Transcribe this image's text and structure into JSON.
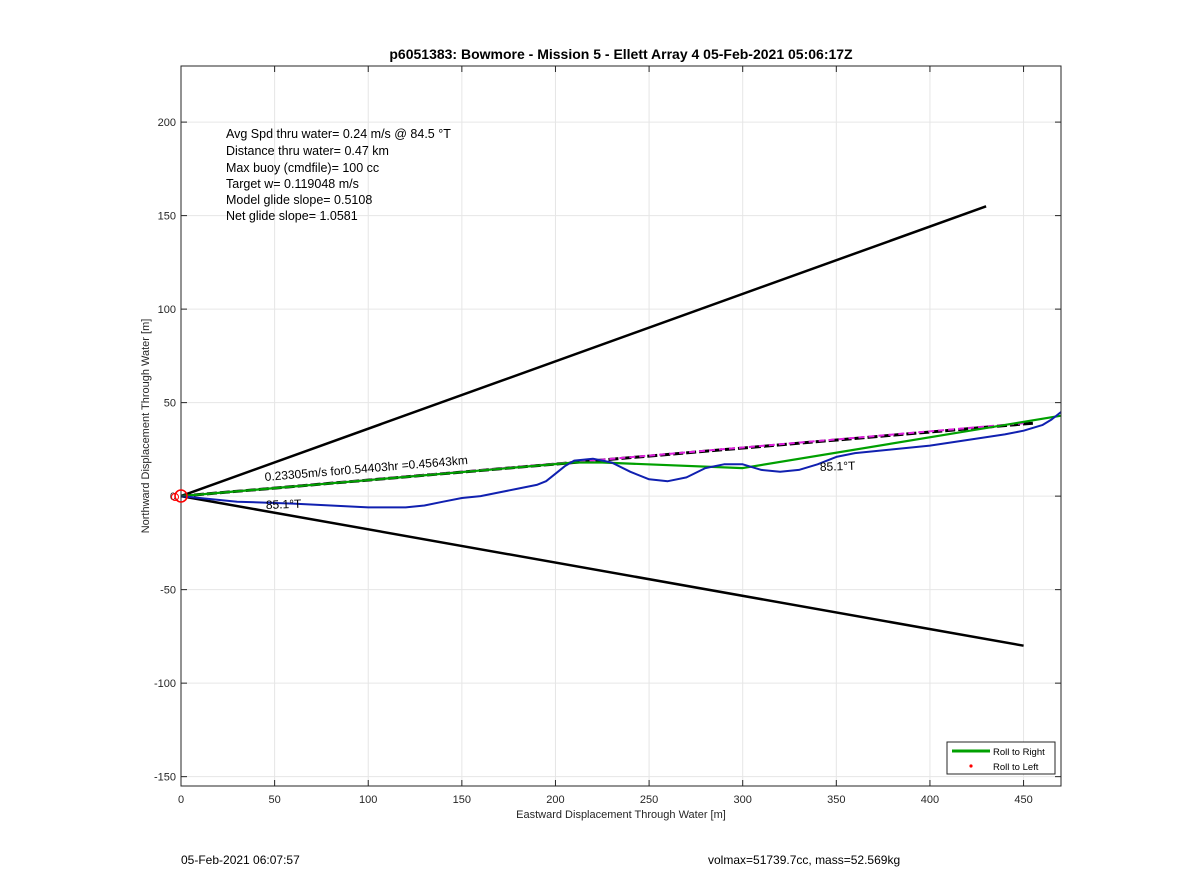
{
  "chart_data": {
    "type": "line",
    "title": "p6051383: Bowmore - Mission 5 - Ellett Array 4 05-Feb-2021 05:06:17Z",
    "xlabel": "Eastward Displacement Through Water [m]",
    "ylabel": "Northward Displacement Through Water [m]",
    "xlim": [
      0,
      470
    ],
    "ylim": [
      -155,
      230
    ],
    "xticks": [
      0,
      50,
      100,
      150,
      200,
      250,
      300,
      350,
      400,
      450
    ],
    "yticks": [
      -150,
      -100,
      -50,
      0,
      50,
      100,
      150,
      200
    ],
    "grid": true,
    "legend": {
      "placement": "bottom-right",
      "entries": [
        {
          "label": "Roll to Right",
          "color": "#00a000",
          "style": "line"
        },
        {
          "label": "Roll to Left",
          "color": "#ff0000",
          "style": "dot"
        }
      ]
    },
    "stats": [
      "Avg Spd thru water=  0.24 m/s @  84.5 °T",
      "Distance thru water=  0.47 km",
      "Max buoy (cmdfile)= 100 cc",
      "Target w= 0.119048 m/s",
      "Model glide slope= 0.5108",
      "Net glide slope= 1.0581"
    ],
    "annotations": {
      "speed_label": "0.23305m/s for0.54403hr =0.45643km",
      "heading_label_a": "85.1°T",
      "heading_label_b": "85.1°T"
    },
    "series": [
      {
        "id": "cone-upper",
        "color": "#000000",
        "x": [
          0,
          430
        ],
        "y": [
          0,
          155
        ]
      },
      {
        "id": "cone-lower",
        "color": "#000000",
        "x": [
          0,
          450
        ],
        "y": [
          0,
          -80
        ]
      },
      {
        "id": "track-net",
        "color": "#000000",
        "dashed": true,
        "x": [
          0,
          455
        ],
        "y": [
          0,
          39
        ]
      },
      {
        "id": "track-magenta",
        "color": "#e020e0",
        "dashed": true,
        "x": [
          0,
          450
        ],
        "y": [
          0,
          39
        ]
      },
      {
        "id": "roll-to-right",
        "name": "Roll to Right",
        "color": "#00a000",
        "x": [
          0,
          210,
          225,
          300,
          470
        ],
        "y": [
          0,
          18,
          18,
          15,
          43
        ]
      },
      {
        "id": "glider-track",
        "color": "#1020b0",
        "x": [
          0,
          30,
          60,
          80,
          100,
          120,
          130,
          140,
          150,
          160,
          170,
          180,
          190,
          195,
          200,
          205,
          210,
          220,
          230,
          240,
          250,
          260,
          270,
          280,
          290,
          300,
          310,
          320,
          330,
          340,
          350,
          360,
          380,
          400,
          420,
          440,
          450,
          460,
          465,
          470
        ],
        "y": [
          0,
          -3,
          -4,
          -5,
          -6,
          -6,
          -5,
          -3,
          -1,
          0,
          2,
          4,
          6,
          8,
          12,
          16,
          19,
          20,
          18,
          13,
          9,
          8,
          10,
          15,
          17,
          17,
          14,
          13,
          14,
          17,
          21,
          23,
          25,
          27,
          30,
          33,
          35,
          38,
          41,
          45
        ]
      }
    ]
  },
  "footer": {
    "timestamp": "05-Feb-2021 06:07:57",
    "mass_info": "volmax=51739.7cc, mass=52.569kg"
  }
}
